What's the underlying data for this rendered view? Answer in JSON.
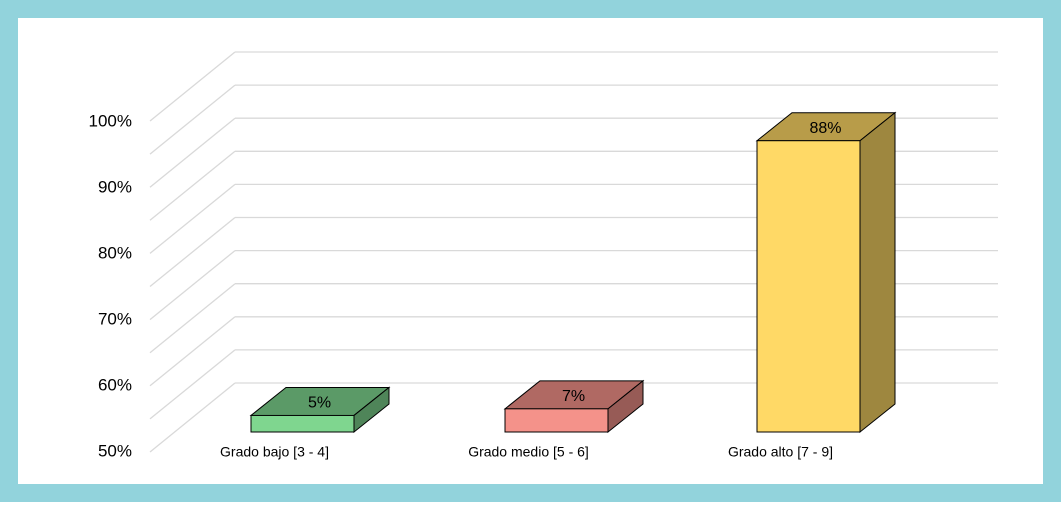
{
  "chart_data": {
    "type": "bar3d",
    "categories": [
      "Grado bajo [3 - 4]",
      "Grado medio [5 - 6]",
      "Grado alto [7 - 9]"
    ],
    "values": [
      5,
      7,
      88
    ],
    "value_labels": [
      "5%",
      "7%",
      "88%"
    ],
    "colors": [
      "#7fd68f",
      "#f4928a",
      "#ffd966"
    ],
    "ylim": [
      0,
      100
    ],
    "yticks": [
      {
        "value": 50,
        "label": "50%"
      },
      {
        "value": 60,
        "label": "60%"
      },
      {
        "value": 70,
        "label": "70%"
      },
      {
        "value": 80,
        "label": "80%"
      },
      {
        "value": 90,
        "label": "90%"
      },
      {
        "value": 100,
        "label": "100%"
      }
    ],
    "grid": true
  }
}
